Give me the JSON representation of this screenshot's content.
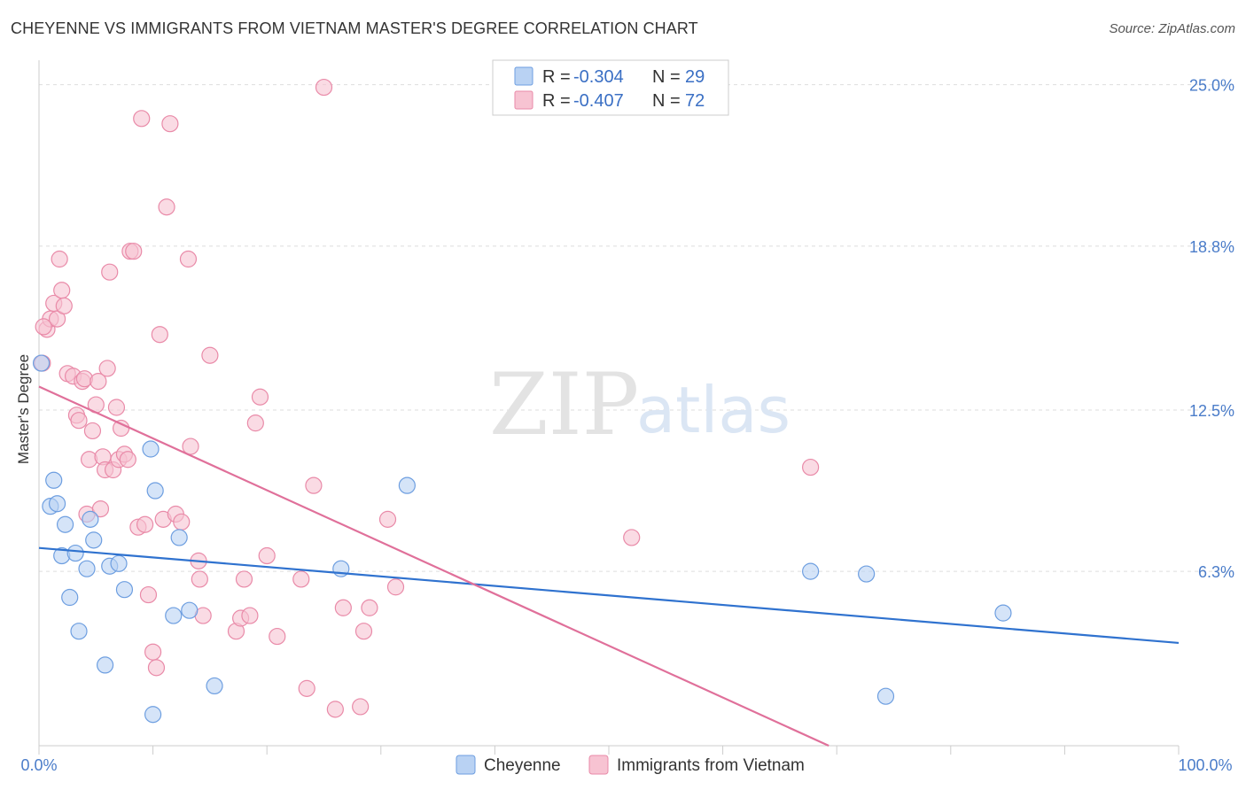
{
  "header": {
    "title": "CHEYENNE VS IMMIGRANTS FROM VIETNAM MASTER'S DEGREE CORRELATION CHART",
    "source": "Source: ZipAtlas.com"
  },
  "watermark": {
    "part1": "ZIP",
    "part2": "atlas"
  },
  "legend_box": {
    "r_label": "R =",
    "n_label": "N =",
    "rows": [
      {
        "r": "-0.304",
        "n": "29"
      },
      {
        "r": "-0.407",
        "n": "72"
      }
    ]
  },
  "colors": {
    "cheyenne_fill": "#b9d2f3",
    "cheyenne_stroke": "#6d9ee0",
    "cheyenne_line": "#2f72cf",
    "vietnam_fill": "#f7c3d2",
    "vietnam_stroke": "#e98aa8",
    "vietnam_line": "#e0709a",
    "grid": "#dddddd",
    "tick_label": "#4a7cc9"
  },
  "chart_data": {
    "type": "scatter",
    "title": "CHEYENNE VS IMMIGRANTS FROM VIETNAM MASTER'S DEGREE CORRELATION CHART",
    "xlabel": "",
    "ylabel": "Master's Degree",
    "xlim": [
      0,
      100
    ],
    "ylim": [
      -0.4,
      25.6
    ],
    "y_ticks": [
      6.3,
      12.5,
      18.8,
      25.0
    ],
    "y_tick_labels": [
      "6.3%",
      "12.5%",
      "18.8%",
      "25.0%"
    ],
    "x_tick_labels": [
      "0.0%",
      "100.0%"
    ],
    "grid": true,
    "legend_position": "bottom",
    "series": [
      {
        "name": "Cheyenne",
        "r": -0.304,
        "n": 29,
        "trend": {
          "x": [
            0,
            100
          ],
          "y": [
            7.2,
            3.55
          ]
        },
        "points": [
          [
            0.2,
            14.3
          ],
          [
            1.0,
            8.8
          ],
          [
            1.3,
            9.8
          ],
          [
            1.6,
            8.9
          ],
          [
            2.0,
            6.9
          ],
          [
            2.3,
            8.1
          ],
          [
            2.7,
            5.3
          ],
          [
            3.2,
            7.0
          ],
          [
            3.5,
            4.0
          ],
          [
            4.2,
            6.4
          ],
          [
            4.5,
            8.3
          ],
          [
            4.8,
            7.5
          ],
          [
            5.8,
            2.7
          ],
          [
            6.2,
            6.5
          ],
          [
            7.0,
            6.6
          ],
          [
            7.5,
            5.6
          ],
          [
            9.8,
            11.0
          ],
          [
            10.0,
            0.8
          ],
          [
            10.2,
            9.4
          ],
          [
            11.8,
            4.6
          ],
          [
            12.3,
            7.6
          ],
          [
            13.2,
            4.8
          ],
          [
            15.4,
            1.9
          ],
          [
            26.5,
            6.4
          ],
          [
            32.3,
            9.6
          ],
          [
            67.7,
            6.3
          ],
          [
            72.6,
            6.2
          ],
          [
            74.3,
            1.5
          ],
          [
            84.6,
            4.7
          ]
        ]
      },
      {
        "name": "Immigrants from Vietnam",
        "r": -0.407,
        "n": 72,
        "trend": {
          "x": [
            0,
            69.3
          ],
          "y": [
            13.4,
            -0.4
          ]
        },
        "points": [
          [
            0.3,
            14.3
          ],
          [
            0.7,
            15.6
          ],
          [
            1.0,
            16.0
          ],
          [
            1.3,
            16.6
          ],
          [
            1.6,
            16.0
          ],
          [
            1.8,
            18.3
          ],
          [
            2.0,
            17.1
          ],
          [
            2.2,
            16.5
          ],
          [
            2.5,
            13.9
          ],
          [
            3.0,
            13.8
          ],
          [
            3.3,
            12.3
          ],
          [
            3.5,
            12.1
          ],
          [
            3.8,
            13.6
          ],
          [
            4.0,
            13.7
          ],
          [
            4.2,
            8.5
          ],
          [
            4.4,
            10.6
          ],
          [
            4.7,
            11.7
          ],
          [
            5.0,
            12.7
          ],
          [
            5.2,
            13.6
          ],
          [
            5.4,
            8.7
          ],
          [
            5.6,
            10.7
          ],
          [
            5.8,
            10.2
          ],
          [
            6.0,
            14.1
          ],
          [
            6.2,
            17.8
          ],
          [
            6.5,
            10.2
          ],
          [
            6.8,
            12.6
          ],
          [
            7.0,
            10.6
          ],
          [
            7.2,
            11.8
          ],
          [
            7.5,
            10.8
          ],
          [
            7.8,
            10.6
          ],
          [
            8.0,
            18.6
          ],
          [
            8.3,
            18.6
          ],
          [
            8.7,
            8.0
          ],
          [
            9.0,
            23.7
          ],
          [
            9.3,
            8.1
          ],
          [
            9.6,
            5.4
          ],
          [
            10.0,
            3.2
          ],
          [
            10.3,
            2.6
          ],
          [
            10.6,
            15.4
          ],
          [
            10.9,
            8.3
          ],
          [
            11.2,
            20.3
          ],
          [
            11.5,
            23.5
          ],
          [
            12.0,
            8.5
          ],
          [
            12.5,
            8.2
          ],
          [
            13.1,
            18.3
          ],
          [
            13.3,
            11.1
          ],
          [
            14.0,
            6.7
          ],
          [
            14.1,
            6.0
          ],
          [
            14.4,
            4.6
          ],
          [
            15.0,
            14.6
          ],
          [
            17.3,
            4.0
          ],
          [
            17.7,
            4.5
          ],
          [
            18.0,
            6.0
          ],
          [
            18.5,
            4.6
          ],
          [
            19.0,
            12.0
          ],
          [
            19.4,
            13.0
          ],
          [
            20.0,
            6.9
          ],
          [
            20.9,
            3.8
          ],
          [
            23.0,
            6.0
          ],
          [
            23.5,
            1.8
          ],
          [
            24.1,
            9.6
          ],
          [
            25.0,
            24.9
          ],
          [
            26.0,
            1.0
          ],
          [
            26.7,
            4.9
          ],
          [
            28.2,
            1.1
          ],
          [
            28.5,
            4.0
          ],
          [
            29.0,
            4.9
          ],
          [
            30.6,
            8.3
          ],
          [
            31.3,
            5.7
          ],
          [
            52.0,
            7.6
          ],
          [
            67.7,
            10.3
          ],
          [
            0.4,
            15.7
          ]
        ]
      }
    ]
  },
  "bottom_legend": [
    {
      "label": "Cheyenne"
    },
    {
      "label": "Immigrants from Vietnam"
    }
  ]
}
